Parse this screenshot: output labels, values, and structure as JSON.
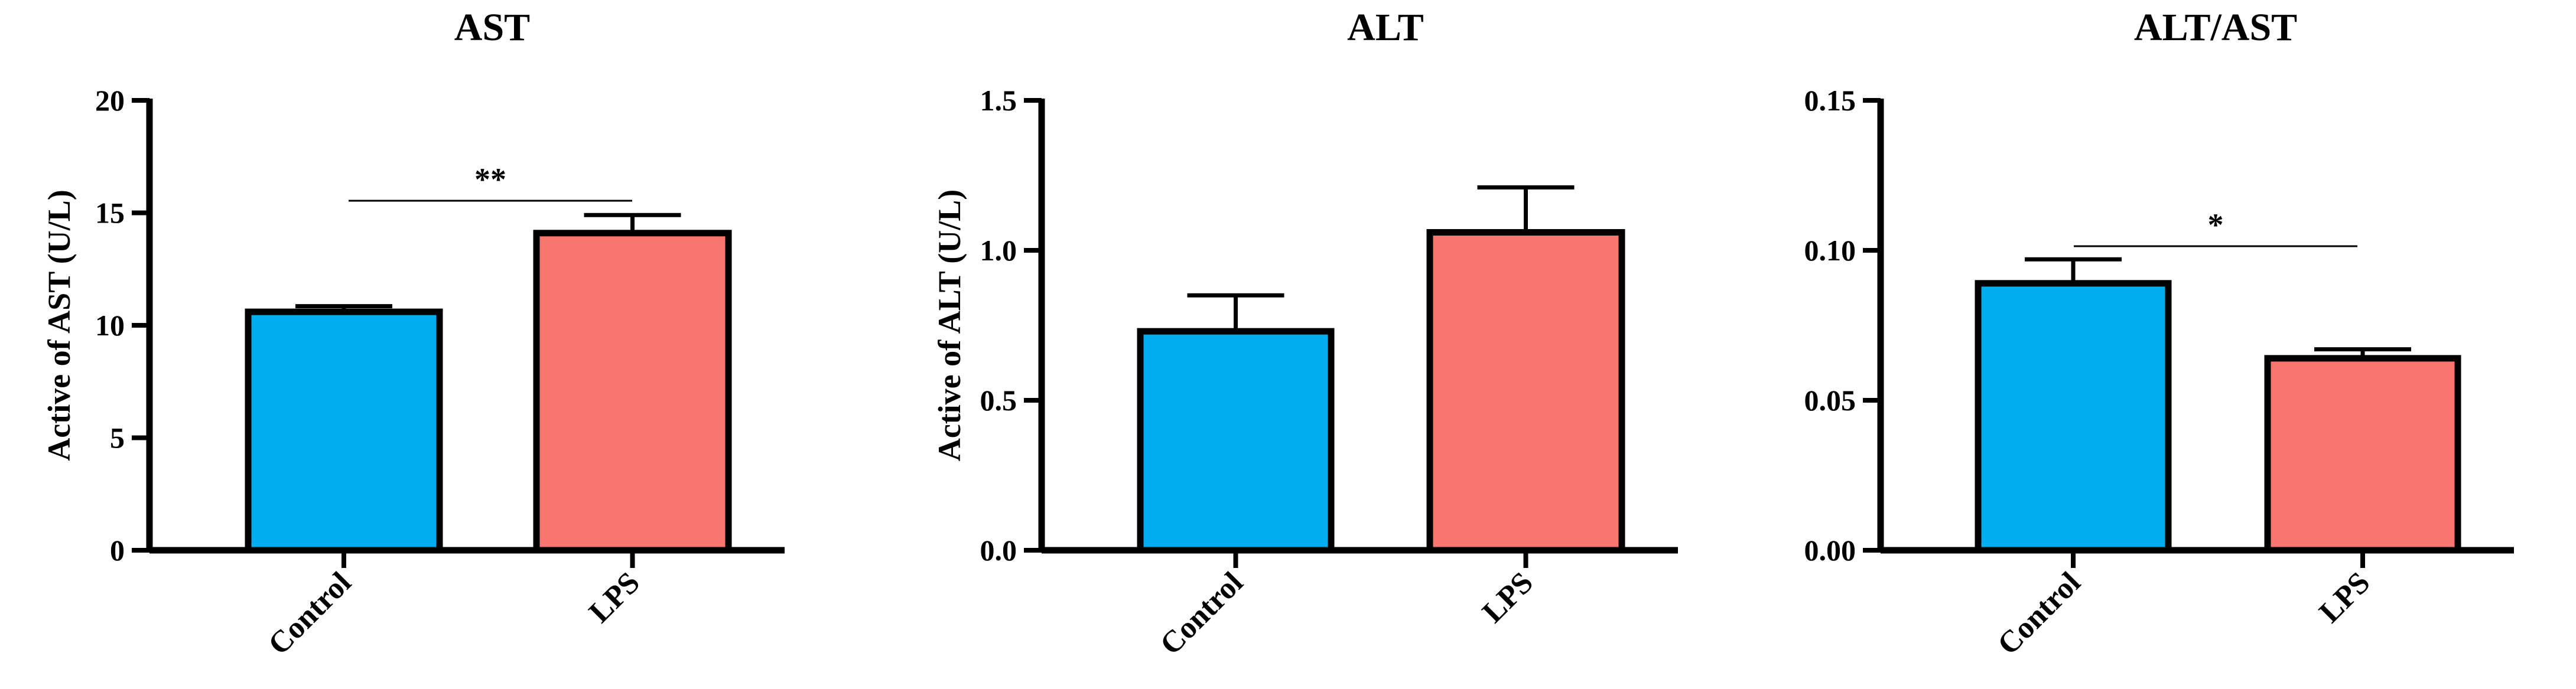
{
  "colors": {
    "control": "#00AEEF",
    "lps": "#F8766D",
    "axis": "#000000"
  },
  "chart_data": [
    {
      "type": "bar",
      "title": "AST",
      "ylabel": "Active of AST (U/L)",
      "categories": [
        "Control",
        "LPS"
      ],
      "values": [
        10.6,
        14.1
      ],
      "errors": [
        0.25,
        0.8
      ],
      "ylim": [
        0,
        20
      ],
      "yticks": [
        "0",
        "5",
        "10",
        "15",
        "20"
      ],
      "significance": [
        {
          "from": 0,
          "to": 1,
          "label": "**"
        }
      ],
      "grid": false
    },
    {
      "type": "bar",
      "title": "ALT",
      "ylabel": "Active of ALT (U/L)",
      "categories": [
        "Control",
        "LPS"
      ],
      "values": [
        0.73,
        1.06
      ],
      "errors": [
        0.12,
        0.15
      ],
      "ylim": [
        0,
        1.5
      ],
      "yticks": [
        "0.0",
        "0.5",
        "1.0",
        "1.5"
      ],
      "significance": [],
      "grid": false
    },
    {
      "type": "bar",
      "title": "ALT/AST",
      "ylabel": "",
      "categories": [
        "Control",
        "LPS"
      ],
      "values": [
        0.089,
        0.064
      ],
      "errors": [
        0.008,
        0.003
      ],
      "ylim": [
        0,
        0.15
      ],
      "yticks": [
        "0.00",
        "0.05",
        "0.10",
        "0.15"
      ],
      "significance": [
        {
          "from": 0,
          "to": 1,
          "label": "*"
        }
      ],
      "grid": false
    }
  ]
}
